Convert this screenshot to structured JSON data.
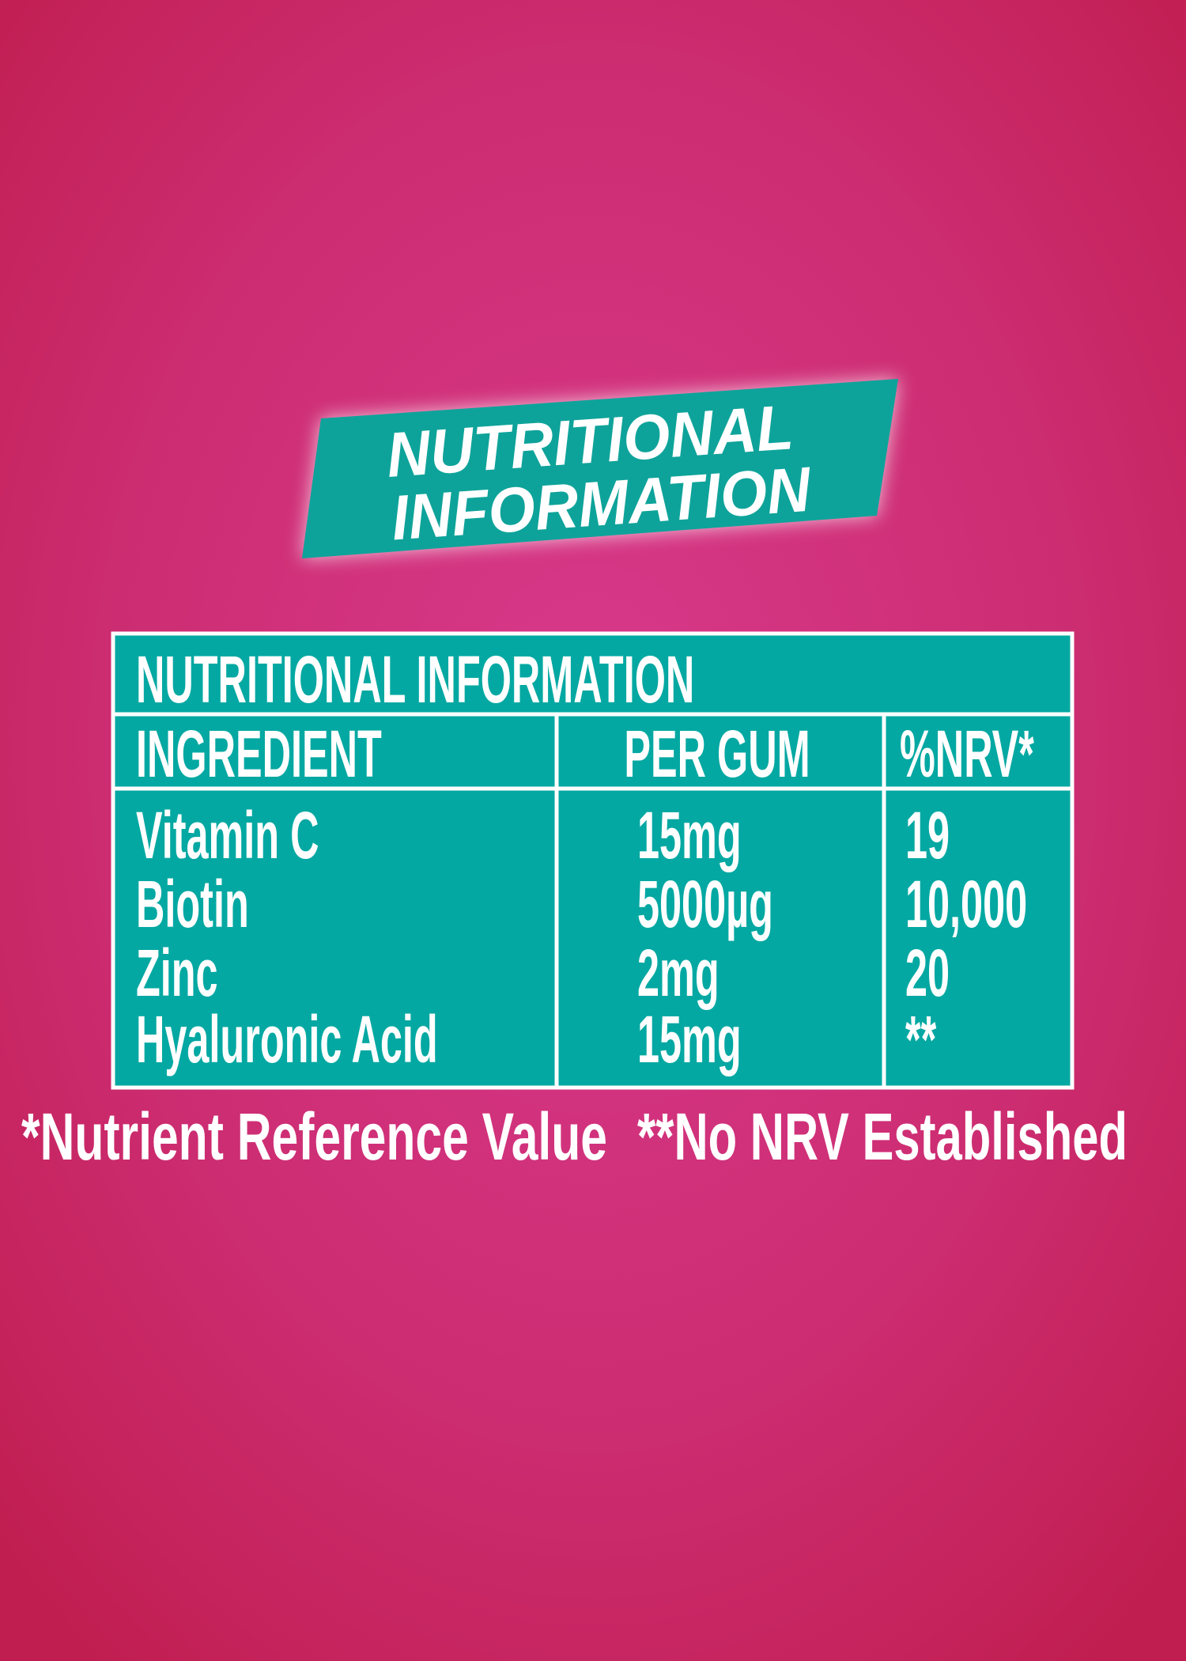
{
  "banner": {
    "lines": [
      "NUTRITIONAL",
      "INFORMATION"
    ]
  },
  "table": {
    "title": "NUTRITIONAL INFORMATION",
    "header": [
      "INGREDIENT",
      "PER GUM",
      "%NRV*"
    ],
    "rows": [
      [
        "Vitamin C",
        "15mg",
        "19"
      ],
      [
        "Biotin",
        "5000µg",
        "10,000"
      ],
      [
        "Zinc",
        "2mg",
        "20"
      ],
      [
        "Hyaluronic Acid",
        "15mg",
        "**"
      ]
    ]
  },
  "footnotes": [
    "*Nutrient Reference Value",
    "**No NRV Established"
  ]
}
